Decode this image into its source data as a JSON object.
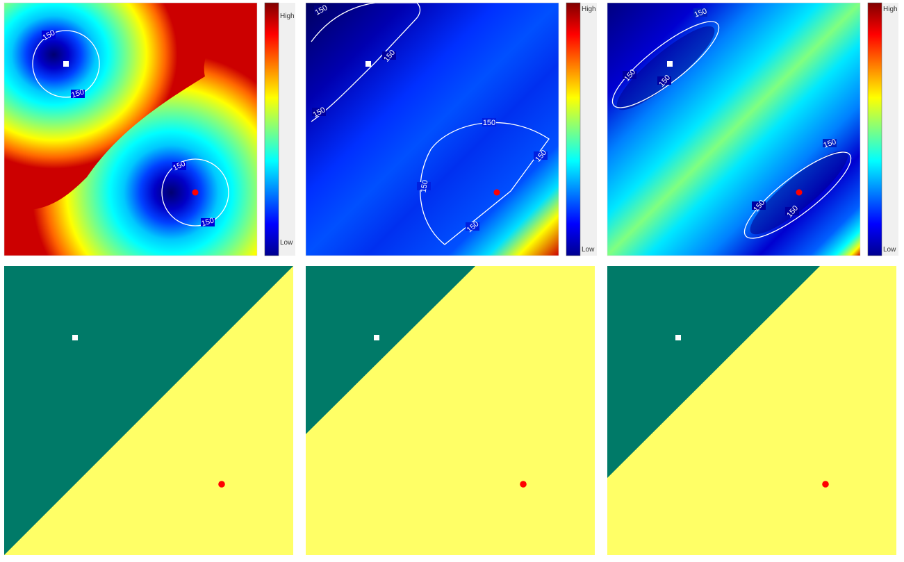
{
  "chart_data": [
    {
      "type": "heatmap",
      "panel": "distance-field-1",
      "colormap": "jet",
      "colorbar": {
        "high_label": "High",
        "low_label": "Low"
      },
      "contour_level": 150,
      "contour_labels": [
        "150",
        "150",
        "150",
        "150"
      ],
      "markers": [
        {
          "shape": "square",
          "color": "#ffffff"
        },
        {
          "shape": "circle",
          "color": "#ff0000"
        }
      ]
    },
    {
      "type": "heatmap",
      "panel": "distance-field-2",
      "colormap": "jet",
      "colorbar": {
        "high_label": "High",
        "low_label": "Low"
      },
      "contour_level": 150,
      "contour_labels": [
        "150",
        "150",
        "150",
        "150",
        "150",
        "150",
        "150"
      ],
      "markers": [
        {
          "shape": "square",
          "color": "#ffffff"
        },
        {
          "shape": "circle",
          "color": "#ff0000"
        }
      ]
    },
    {
      "type": "heatmap",
      "panel": "distance-field-3",
      "colormap": "jet",
      "colorbar": {
        "high_label": "High",
        "low_label": "Low"
      },
      "contour_level": 150,
      "contour_labels": [
        "150",
        "150",
        "150",
        "150",
        "150",
        "150"
      ],
      "markers": [
        {
          "shape": "square",
          "color": "#ffffff"
        },
        {
          "shape": "circle",
          "color": "#ff0000"
        }
      ]
    },
    {
      "type": "heatmap",
      "panel": "partition-1",
      "region_colors": [
        "#007a68",
        "#ffff66"
      ],
      "markers": [
        {
          "shape": "square",
          "color": "#ffffff"
        },
        {
          "shape": "circle",
          "color": "#ff0000"
        }
      ]
    },
    {
      "type": "heatmap",
      "panel": "partition-2",
      "region_colors": [
        "#007a68",
        "#ffff66"
      ],
      "markers": [
        {
          "shape": "square",
          "color": "#ffffff"
        },
        {
          "shape": "circle",
          "color": "#ff0000"
        }
      ]
    },
    {
      "type": "heatmap",
      "panel": "partition-3",
      "region_colors": [
        "#007a68",
        "#ffff66"
      ],
      "markers": [
        {
          "shape": "square",
          "color": "#ffffff"
        },
        {
          "shape": "circle",
          "color": "#ff0000"
        }
      ]
    }
  ]
}
